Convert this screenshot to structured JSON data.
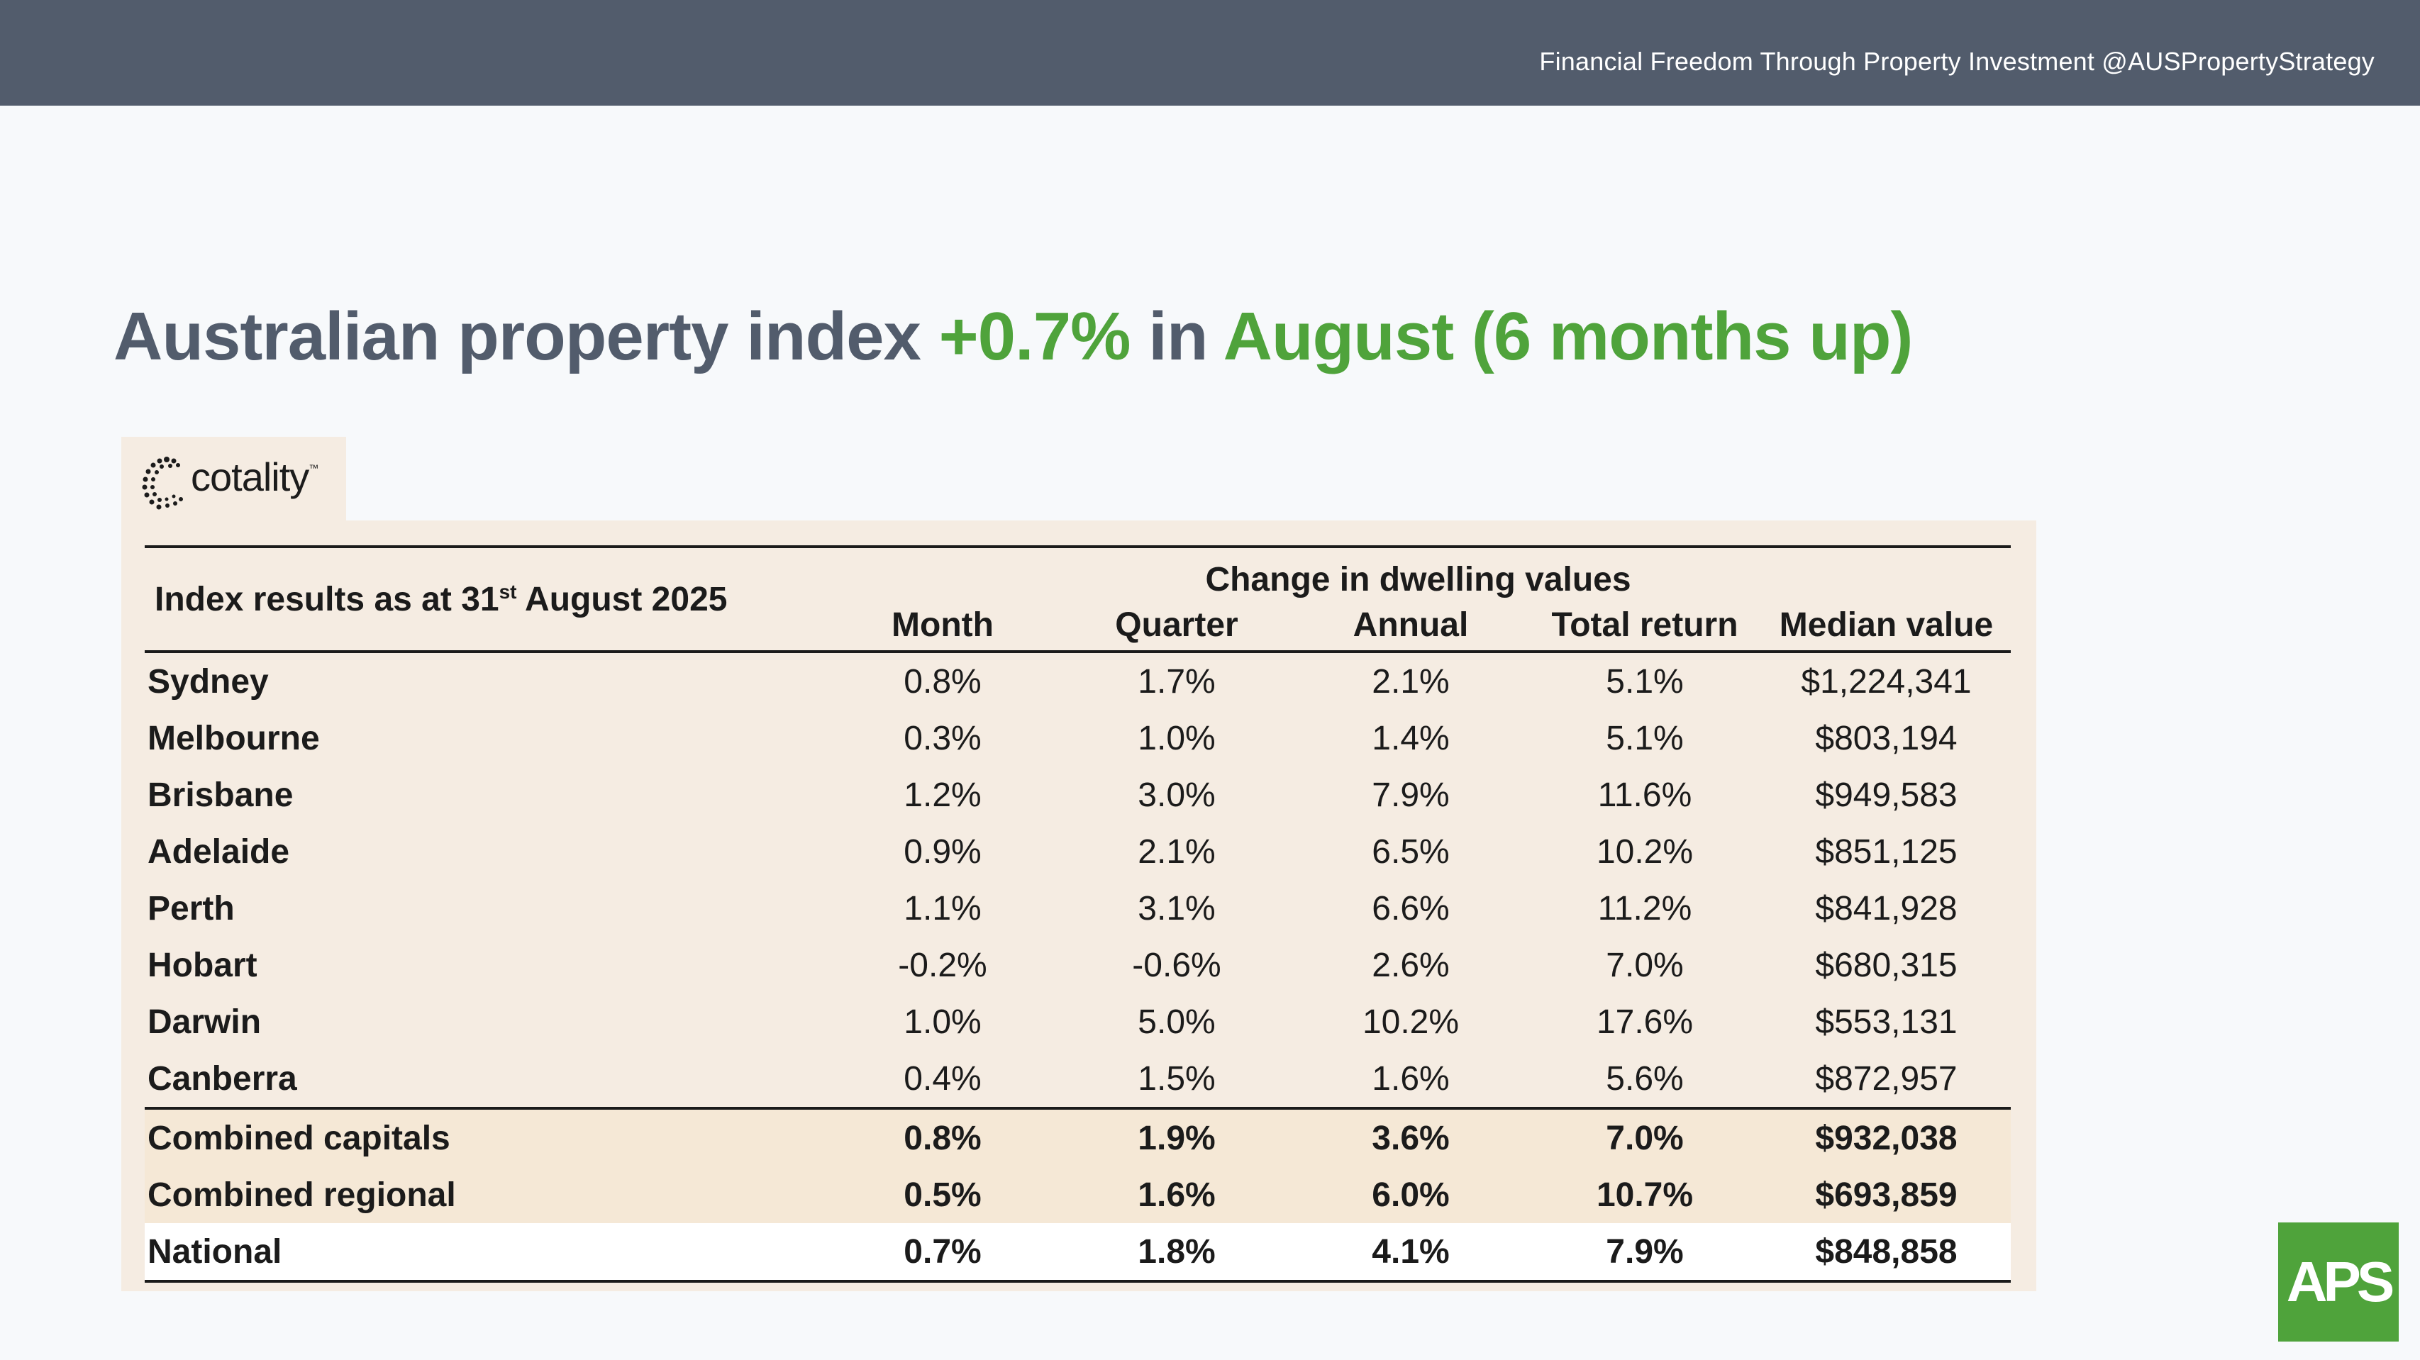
{
  "header": {
    "tagline": "Financial Freedom Through Property Investment @AUSPropertyStrategy",
    "banner_color": "#525c6c"
  },
  "title": {
    "part1": "Australian property index ",
    "part2": "+0.7%",
    "part3": " in ",
    "part4": "August (6 months up)",
    "accent_color": "#4fa33b"
  },
  "logo": {
    "text": "cotality",
    "icon": "cotality-logo-icon"
  },
  "table": {
    "index_label": "Index results as at 31",
    "index_label_sup": "st",
    "index_label_end": " August 2025",
    "group_header": "Change in dwelling values",
    "columns": [
      "Month",
      "Quarter",
      "Annual",
      "Total return",
      "Median value"
    ],
    "rows": [
      {
        "city": "Sydney",
        "month": "0.8%",
        "quarter": "1.7%",
        "annual": "2.1%",
        "total": "5.1%",
        "median": "$1,224,341"
      },
      {
        "city": "Melbourne",
        "month": "0.3%",
        "quarter": "1.0%",
        "annual": "1.4%",
        "total": "5.1%",
        "median": "$803,194"
      },
      {
        "city": "Brisbane",
        "month": "1.2%",
        "quarter": "3.0%",
        "annual": "7.9%",
        "total": "11.6%",
        "median": "$949,583"
      },
      {
        "city": "Adelaide",
        "month": "0.9%",
        "quarter": "2.1%",
        "annual": "6.5%",
        "total": "10.2%",
        "median": "$851,125"
      },
      {
        "city": "Perth",
        "month": "1.1%",
        "quarter": "3.1%",
        "annual": "6.6%",
        "total": "11.2%",
        "median": "$841,928"
      },
      {
        "city": "Hobart",
        "month": "-0.2%",
        "quarter": "-0.6%",
        "annual": "2.6%",
        "total": "7.0%",
        "median": "$680,315"
      },
      {
        "city": "Darwin",
        "month": "1.0%",
        "quarter": "5.0%",
        "annual": "10.2%",
        "total": "17.6%",
        "median": "$553,131"
      },
      {
        "city": "Canberra",
        "month": "0.4%",
        "quarter": "1.5%",
        "annual": "1.6%",
        "total": "5.6%",
        "median": "$872,957"
      }
    ],
    "combined": [
      {
        "city": "Combined capitals",
        "month": "0.8%",
        "quarter": "1.9%",
        "annual": "3.6%",
        "total": "7.0%",
        "median": "$932,038"
      },
      {
        "city": "Combined regional",
        "month": "0.5%",
        "quarter": "1.6%",
        "annual": "6.0%",
        "total": "10.7%",
        "median": "$693,859"
      }
    ],
    "national": {
      "city": "National",
      "month": "0.7%",
      "quarter": "1.8%",
      "annual": "4.1%",
      "total": "7.9%",
      "median": "$848,858"
    }
  },
  "badge": {
    "text": "APS"
  }
}
